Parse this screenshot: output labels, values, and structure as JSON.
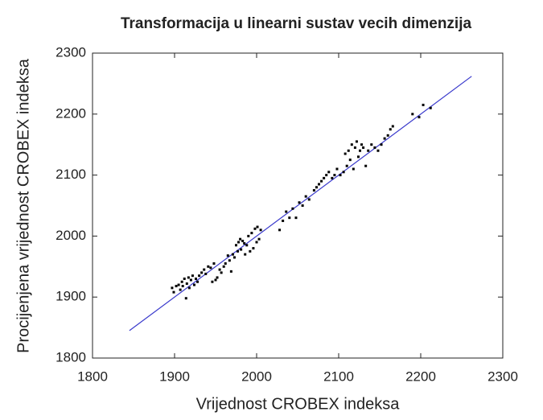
{
  "chart_data": {
    "type": "scatter",
    "title": "Transformacija u linearni sustav vecih dimenzija",
    "x_label": "Vrijednost CROBEX indeksa",
    "y_label": "Procijenjena vrijednost CROBEX indeksa",
    "xlim": [
      1800,
      2300
    ],
    "ylim": [
      1800,
      2300
    ],
    "xticks": [
      1800,
      1900,
      2000,
      2100,
      2200,
      2300
    ],
    "yticks": [
      1800,
      1900,
      2000,
      2100,
      2200,
      2300
    ],
    "color": "#000000",
    "x": [
      1897,
      1899,
      1902,
      1905,
      1907,
      1909,
      1910,
      1912,
      1914,
      1915,
      1917,
      1918,
      1920,
      1922,
      1924,
      1926,
      1928,
      1930,
      1933,
      1936,
      1938,
      1941,
      1944,
      1946,
      1948,
      1950,
      1952,
      1955,
      1957,
      1960,
      1962,
      1965,
      1967,
      1969,
      1971,
      1973,
      1975,
      1977,
      1978,
      1980,
      1981,
      1983,
      1985,
      1986,
      1988,
      1990,
      1992,
      1994,
      1996,
      1998,
      2000,
      2001,
      2003,
      2005,
      2028,
      2032,
      2036,
      2040,
      2044,
      2048,
      2052,
      2056,
      2060,
      2064,
      2070,
      2073,
      2076,
      2079,
      2082,
      2085,
      2088,
      2092,
      2095,
      2098,
      2102,
      2106,
      2108,
      2110,
      2112,
      2114,
      2116,
      2118,
      2120,
      2122,
      2124,
      2126,
      2128,
      2130,
      2133,
      2136,
      2140,
      2144,
      2148,
      2152,
      2156,
      2160,
      2163,
      2166,
      2190,
      2198,
      2203,
      2212
    ],
    "y": [
      1915,
      1908,
      1918,
      1920,
      1912,
      1925,
      1918,
      1930,
      1898,
      1922,
      1932,
      1915,
      1928,
      1935,
      1920,
      1930,
      1925,
      1935,
      1940,
      1945,
      1938,
      1950,
      1948,
      1925,
      1955,
      1928,
      1932,
      1945,
      1940,
      1950,
      1955,
      1968,
      1960,
      1942,
      1970,
      1965,
      1985,
      1975,
      1990,
      1995,
      1978,
      1992,
      1988,
      1970,
      1985,
      2000,
      1975,
      2005,
      1980,
      2012,
      1990,
      2015,
      1995,
      2010,
      2010,
      2025,
      2040,
      2030,
      2045,
      2030,
      2055,
      2050,
      2065,
      2060,
      2075,
      2080,
      2085,
      2090,
      2095,
      2100,
      2105,
      2095,
      2100,
      2110,
      2100,
      2105,
      2135,
      2115,
      2140,
      2125,
      2150,
      2110,
      2145,
      2155,
      2130,
      2140,
      2150,
      2145,
      2115,
      2140,
      2150,
      2145,
      2140,
      2150,
      2160,
      2165,
      2175,
      2180,
      2200,
      2195,
      2215,
      2210
    ],
    "fit": {
      "x": [
        1845,
        2262
      ],
      "y": [
        1845,
        2262
      ],
      "color": "#3a3acc"
    }
  }
}
